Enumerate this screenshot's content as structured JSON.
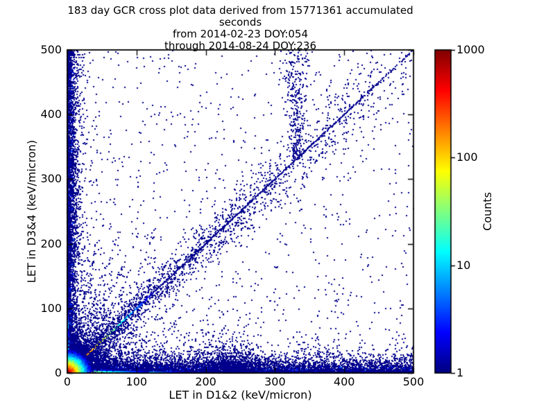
{
  "chart_data": {
    "type": "heatmap",
    "title_lines": [
      "183 day GCR cross plot data derived from 15771361 accumulated seconds",
      "from 2014-02-23 DOY:054",
      "through 2014-08-24 DOY:236"
    ],
    "xlabel": "LET in D1&2 (keV/micron)",
    "ylabel": "LET in D3&4 (keV/micron)",
    "xlim": [
      0,
      500
    ],
    "ylim": [
      0,
      500
    ],
    "xticks": [
      0,
      100,
      200,
      300,
      400,
      500
    ],
    "yticks": [
      0,
      100,
      200,
      300,
      400,
      500
    ],
    "grid": false,
    "background": "#ffffff",
    "point_color_min": "#00008c",
    "colorbar": {
      "label": "Counts",
      "scale": "log",
      "range": [
        1,
        1000
      ],
      "ticks": [
        1,
        10,
        100,
        1000
      ],
      "colormap": "jet"
    },
    "seed": 42,
    "features": [
      {
        "type": "ambient",
        "n_biased": 1300,
        "bias_pow": 2.2,
        "n_uniform": 300
      },
      {
        "type": "origin_fill",
        "n": 2600,
        "r_scale": 45
      },
      {
        "type": "band",
        "axis": "x",
        "n": 7500,
        "spread": 9,
        "power": 1.4,
        "bright_frac": 0.12,
        "bright_below": 10
      },
      {
        "type": "band",
        "axis": "y",
        "n": 4200,
        "spread": 5.5,
        "power": 1.15,
        "bright_frac": 0.1,
        "bright_below": 10
      },
      {
        "type": "cluster",
        "x": 236,
        "x_sigma": 22,
        "y_scale": 17,
        "n": 850
      },
      {
        "type": "rays",
        "slopes": [
          1.2,
          1.5,
          2.0,
          2.9,
          4.5,
          0.83,
          0.67,
          0.5
        ],
        "counts": [
          130,
          130,
          120,
          110,
          90,
          90,
          70,
          60
        ],
        "r_scale": 70
      },
      {
        "type": "plume",
        "x": 331,
        "y_min": 330,
        "y_max": 500,
        "n": 330,
        "sigma0": 4,
        "grow": 0.05
      },
      {
        "type": "diagonal",
        "t_max": 500,
        "step": 0.8,
        "amp": 800,
        "decade_t": 45,
        "sigma0": 3,
        "grow": 0.055,
        "halo": 4,
        "fade_start": 420
      },
      {
        "type": "edge_line",
        "axis": "x",
        "decade": 58
      },
      {
        "type": "edge_line",
        "axis": "y",
        "decade": 34
      },
      {
        "type": "origin_blob",
        "n": 5200,
        "scale": 11,
        "decade_r": 12.5
      }
    ]
  }
}
